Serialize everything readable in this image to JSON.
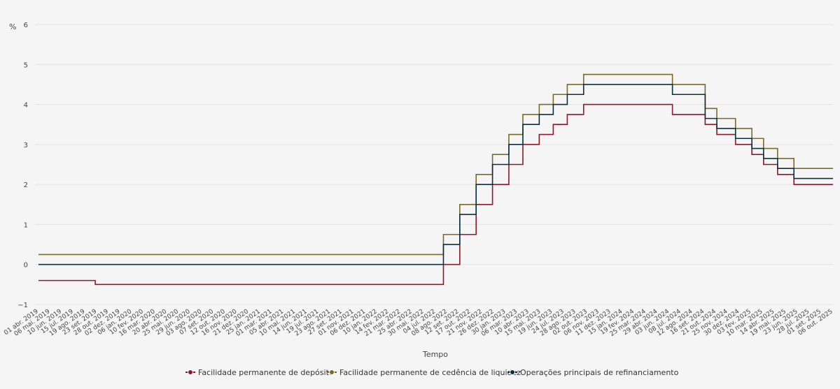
{
  "chart_data": {
    "type": "line",
    "step": true,
    "ylabel": "%",
    "xlabel": "Tempo",
    "ylim": [
      -1,
      6
    ],
    "yticks": [
      "−1",
      "0",
      "1",
      "2",
      "3",
      "4",
      "5",
      "6"
    ],
    "grid": true,
    "legend_position": "bottom",
    "x_start": "2019-04-01",
    "x_end": "2025-10-06",
    "x_ticks": [
      "01 abr. 2019",
      "06 mai. 2019",
      "10 jun. 2019",
      "15 jul. 2019",
      "19 ago. 2019",
      "23 set. 2019",
      "28 out. 2019",
      "02 dez. 2019",
      "06 jan. 2020",
      "10 fev. 2020",
      "16 mar. 2020",
      "20 abr. 2020",
      "25 mai. 2020",
      "29 jun. 2020",
      "03 ago. 2020",
      "07 set. 2020",
      "12 out. 2020",
      "16 nov. 2020",
      "21 dez. 2020",
      "25 jan. 2021",
      "01 mar. 2021",
      "05 abr. 2021",
      "10 mai. 2021",
      "14 jun. 2021",
      "19 jul. 2021",
      "23 ago. 2021",
      "27 set. 2021",
      "01 nov. 2021",
      "06 dez. 2021",
      "10 jan. 2022",
      "14 fev. 2022",
      "21 mar. 2022",
      "25 abr. 2022",
      "30 mai. 2022",
      "04 jul. 2022",
      "08 ago. 2022",
      "12 set. 2022",
      "17 out. 2022",
      "21 nov. 2022",
      "26 dez. 2022",
      "30 jan. 2023",
      "06 mar. 2023",
      "10 abr. 2023",
      "15 mai. 2023",
      "19 jun. 2023",
      "24 jul. 2023",
      "28 ago. 2023",
      "02 out. 2023",
      "06 nov. 2023",
      "11 dez. 2023",
      "15 jan. 2024",
      "19 fev. 2024",
      "25 mar. 2024",
      "29 abr. 2024",
      "03 jun. 2024",
      "08 jul. 2024",
      "12 ago. 2024",
      "16 set. 2024",
      "21 out. 2024",
      "25 nov. 2024",
      "30 dez. 2024",
      "03 fev. 2025",
      "10 mar. 2025",
      "14 abr. 2025",
      "19 mai. 2025",
      "23 jun. 2025",
      "28 jul. 2025",
      "01 set. 2025",
      "06 out. 2025"
    ],
    "series": [
      {
        "name": "Facilidade permanente de depósito",
        "color": "#8b1a2b",
        "x": [
          "2019-04-01",
          "2019-09-18",
          "2022-07-27",
          "2022-09-14",
          "2022-11-02",
          "2022-12-21",
          "2023-02-08",
          "2023-03-22",
          "2023-05-10",
          "2023-06-21",
          "2023-08-02",
          "2023-09-20",
          "2024-06-12",
          "2024-09-18",
          "2024-10-23",
          "2024-12-18",
          "2025-02-05",
          "2025-03-12",
          "2025-04-23",
          "2025-06-11",
          "2025-10-06"
        ],
        "values": [
          -0.4,
          -0.5,
          0.0,
          0.75,
          1.5,
          2.0,
          2.5,
          3.0,
          3.25,
          3.5,
          3.75,
          4.0,
          3.75,
          3.5,
          3.25,
          3.0,
          2.75,
          2.5,
          2.25,
          2.0,
          2.0
        ]
      },
      {
        "name": "Facilidade permanente de cedência de liquidez",
        "color": "#7a6a2a",
        "x": [
          "2019-04-01",
          "2022-07-27",
          "2022-09-14",
          "2022-11-02",
          "2022-12-21",
          "2023-02-08",
          "2023-03-22",
          "2023-05-10",
          "2023-06-21",
          "2023-08-02",
          "2023-09-20",
          "2024-06-12",
          "2024-09-18",
          "2024-10-23",
          "2024-12-18",
          "2025-02-05",
          "2025-03-12",
          "2025-04-23",
          "2025-06-11",
          "2025-10-06"
        ],
        "values": [
          0.25,
          0.75,
          1.5,
          2.25,
          2.75,
          3.25,
          3.75,
          4.0,
          4.25,
          4.5,
          4.75,
          4.5,
          3.9,
          3.65,
          3.4,
          3.15,
          2.9,
          2.65,
          2.4,
          2.4
        ]
      },
      {
        "name": "Operações principais de refinanciamento",
        "color": "#0b2f40",
        "x": [
          "2019-04-01",
          "2022-07-27",
          "2022-09-14",
          "2022-11-02",
          "2022-12-21",
          "2023-02-08",
          "2023-03-22",
          "2023-05-10",
          "2023-06-21",
          "2023-08-02",
          "2023-09-20",
          "2024-06-12",
          "2024-09-18",
          "2024-10-23",
          "2024-12-18",
          "2025-02-05",
          "2025-03-12",
          "2025-04-23",
          "2025-06-11",
          "2025-10-06"
        ],
        "values": [
          0.0,
          0.5,
          1.25,
          2.0,
          2.5,
          3.0,
          3.5,
          3.75,
          4.0,
          4.25,
          4.5,
          4.25,
          3.65,
          3.4,
          3.15,
          2.9,
          2.65,
          2.4,
          2.15,
          2.15
        ]
      }
    ]
  }
}
